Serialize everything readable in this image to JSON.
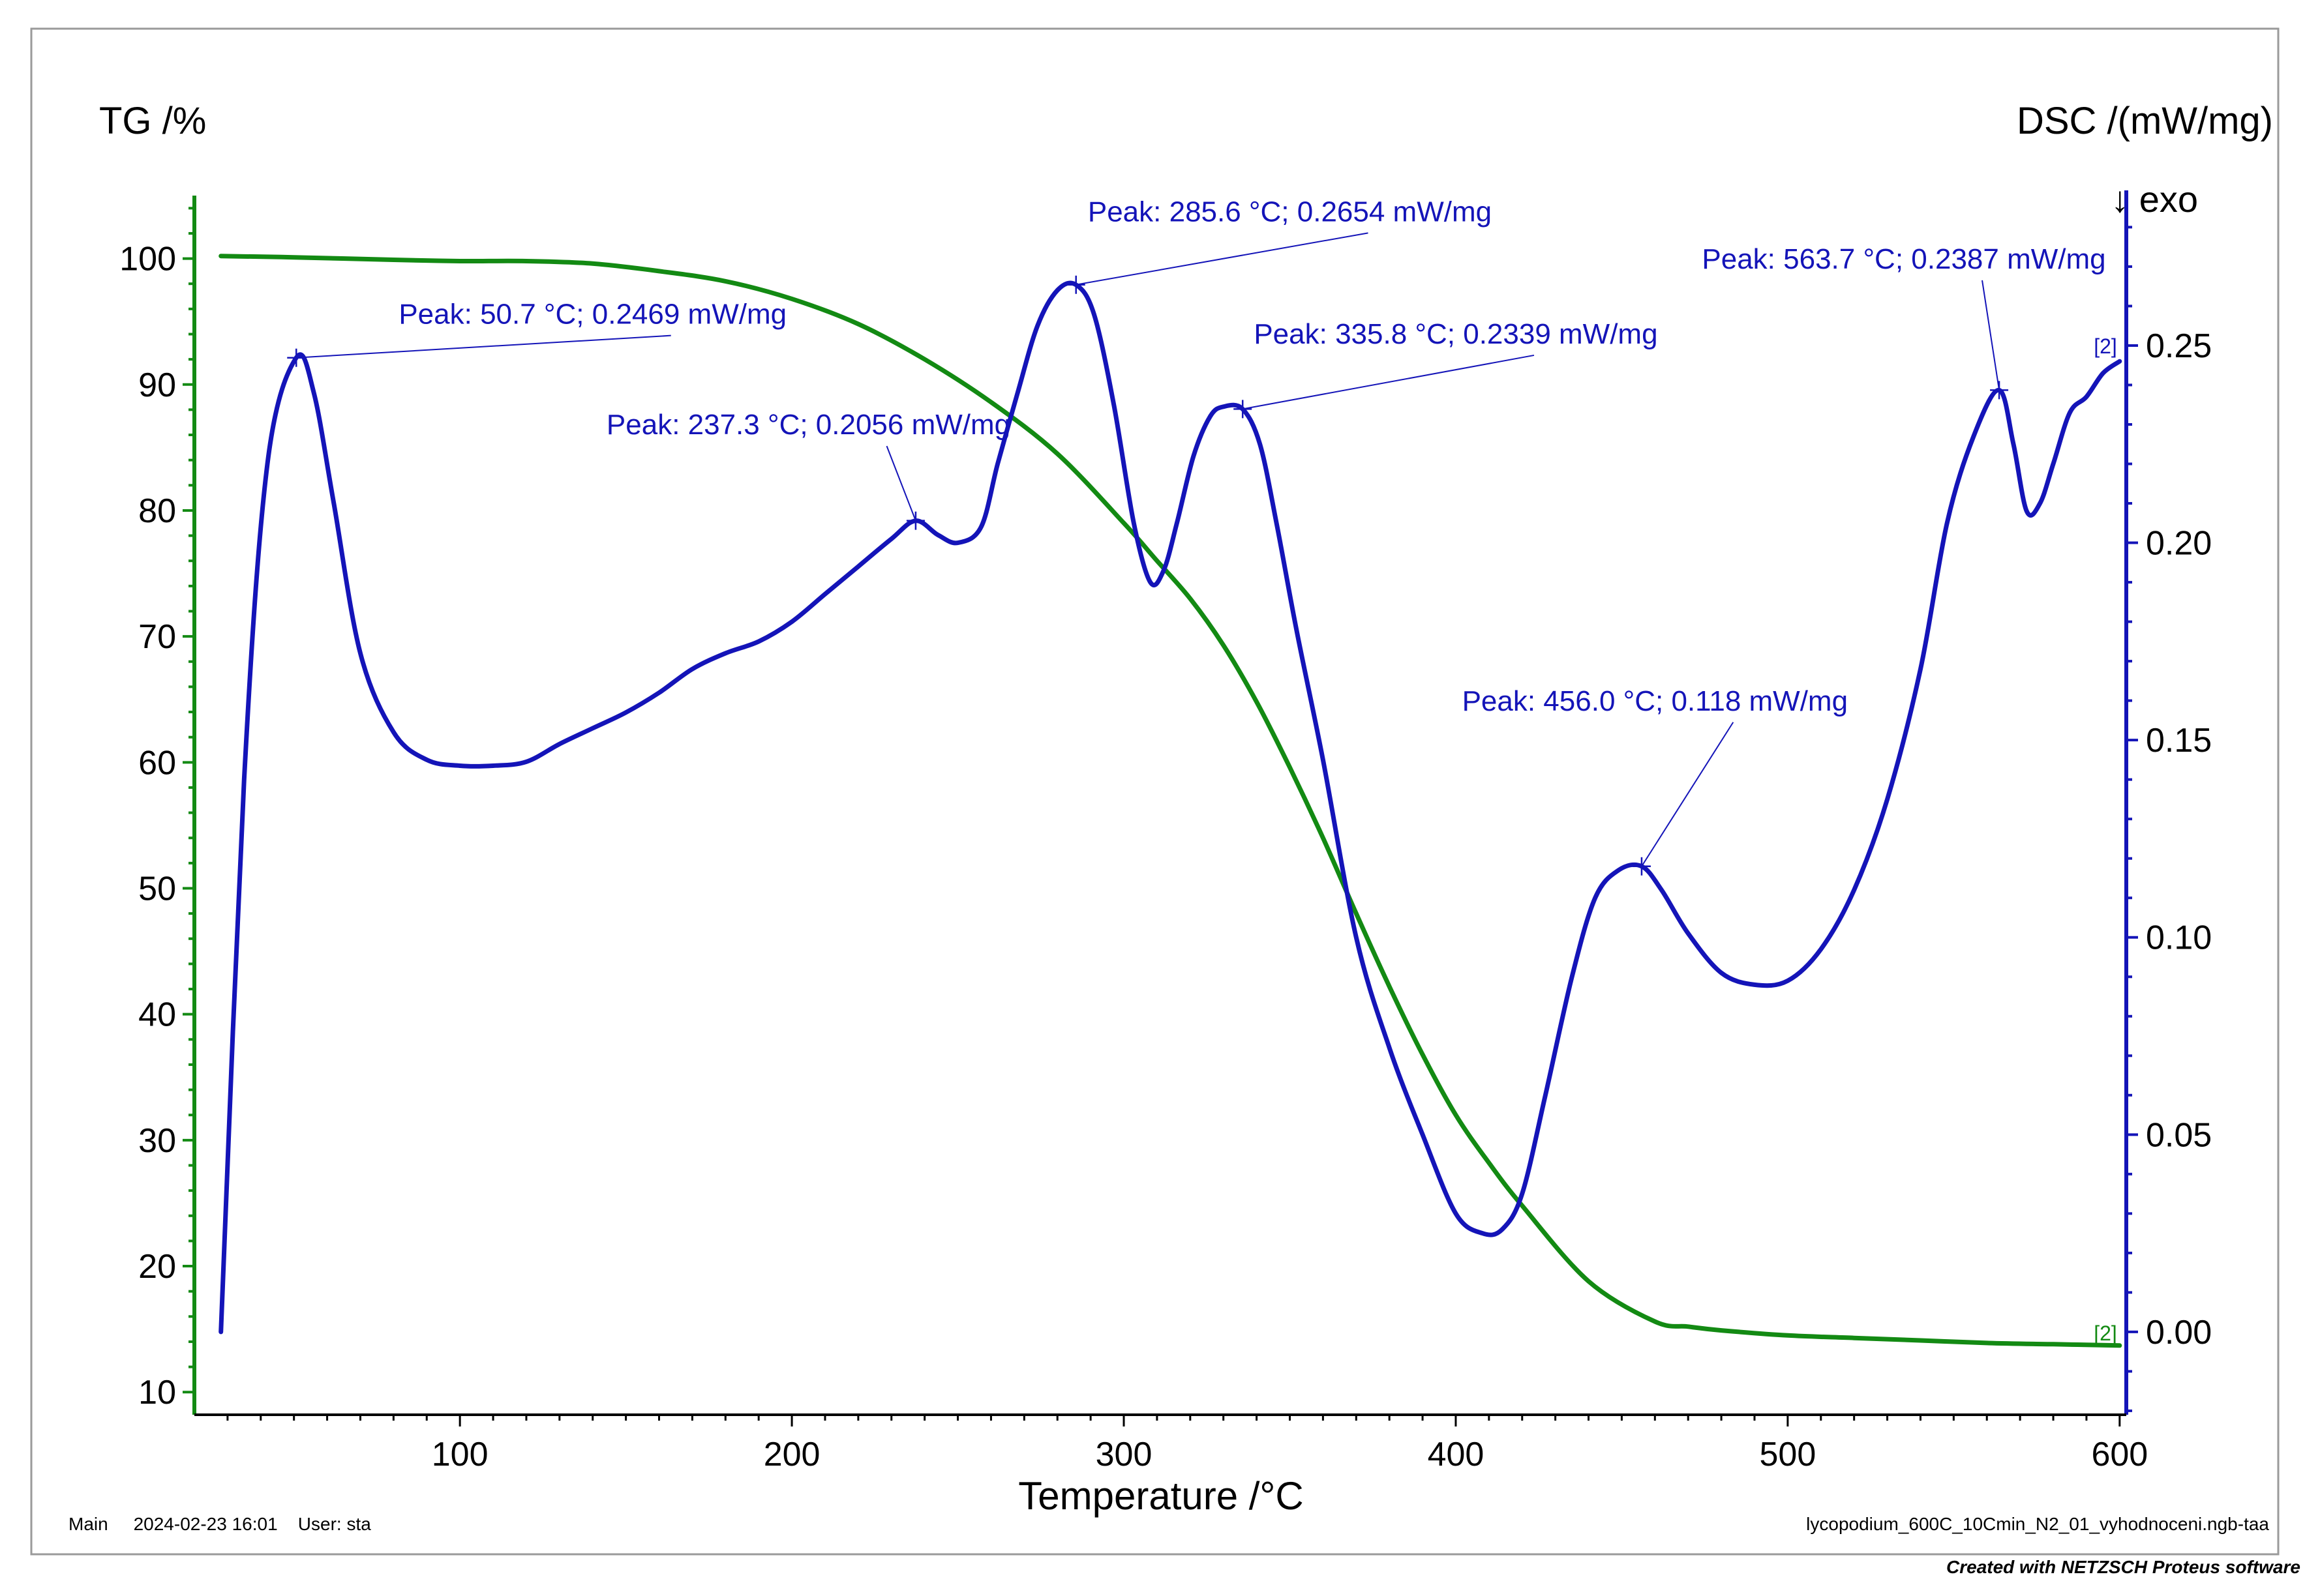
{
  "chart_data": {
    "type": "line",
    "title": "",
    "xlabel": "Temperature /°C",
    "ylabel_left": "TG /%",
    "ylabel_right": "DSC /(mW/mg)",
    "exo_label": "↓ exo",
    "xlim": [
      20,
      602
    ],
    "xticks": [
      100,
      200,
      300,
      400,
      500,
      600
    ],
    "y_left_lim": [
      8.2,
      105
    ],
    "y_left_ticks": [
      10,
      20,
      30,
      40,
      50,
      60,
      70,
      80,
      90,
      100
    ],
    "y_right_lim": [
      -0.021,
      0.288
    ],
    "y_right_ticks": [
      0.0,
      0.05,
      0.1,
      0.15,
      0.2,
      0.25
    ],
    "y_right_tick_labels": [
      "0.00",
      "0.05",
      "0.10",
      "0.15",
      "0.20",
      "0.25"
    ],
    "series": [
      {
        "name": "TG",
        "axis": "left",
        "color": "#138a13",
        "end_label": "[2]",
        "x": [
          28,
          50,
          80,
          100,
          120,
          140,
          160,
          180,
          200,
          220,
          240,
          260,
          280,
          300,
          310,
          320,
          330,
          340,
          350,
          360,
          370,
          380,
          390,
          400,
          410,
          420,
          440,
          460,
          470,
          480,
          500,
          520,
          540,
          560,
          580,
          600
        ],
        "values": [
          100.2,
          100.1,
          99.9,
          99.8,
          99.8,
          99.6,
          99.0,
          98.2,
          96.8,
          94.8,
          92.0,
          88.6,
          84.5,
          79.0,
          76.0,
          73.0,
          69.3,
          64.8,
          59.6,
          54.0,
          48.0,
          42.2,
          36.8,
          32.0,
          28.2,
          24.8,
          18.8,
          15.6,
          15.2,
          14.9,
          14.5,
          14.3,
          14.1,
          13.9,
          13.8,
          13.7
        ]
      },
      {
        "name": "DSC",
        "axis": "right",
        "color": "#1414b8",
        "end_label": "[2]",
        "x": [
          28,
          35,
          42,
          50.7,
          56,
          62,
          70,
          80,
          90,
          100,
          110,
          120,
          130,
          140,
          150,
          160,
          170,
          180,
          190,
          200,
          210,
          220,
          230,
          237.3,
          244,
          250,
          257,
          262,
          268,
          274,
          280,
          285.6,
          291,
          297,
          303,
          308,
          312,
          316,
          321,
          326,
          330,
          335.8,
          341,
          346,
          352,
          360,
          370,
          380,
          390,
          400,
          408,
          414,
          420,
          427,
          435,
          442,
          449,
          456,
          462,
          470,
          480,
          490,
          500,
          510,
          520,
          530,
          540,
          548,
          556,
          563.7,
          568,
          572,
          576,
          580,
          585,
          590,
          595,
          600
        ],
        "values": [
          0.0,
          0.14,
          0.22,
          0.2469,
          0.238,
          0.21,
          0.172,
          0.152,
          0.145,
          0.1435,
          0.1435,
          0.1445,
          0.149,
          0.153,
          0.157,
          0.162,
          0.168,
          0.172,
          0.175,
          0.18,
          0.187,
          0.194,
          0.201,
          0.2056,
          0.202,
          0.2,
          0.204,
          0.22,
          0.238,
          0.255,
          0.264,
          0.2654,
          0.258,
          0.235,
          0.205,
          0.19,
          0.193,
          0.205,
          0.222,
          0.232,
          0.2345,
          0.2339,
          0.225,
          0.205,
          0.178,
          0.145,
          0.1,
          0.072,
          0.05,
          0.03,
          0.025,
          0.026,
          0.035,
          0.06,
          0.09,
          0.11,
          0.117,
          0.118,
          0.112,
          0.101,
          0.091,
          0.088,
          0.089,
          0.097,
          0.112,
          0.135,
          0.168,
          0.205,
          0.227,
          0.2387,
          0.225,
          0.208,
          0.21,
          0.22,
          0.233,
          0.237,
          0.243,
          0.246
        ]
      }
    ],
    "annotations": [
      {
        "text": "Peak: 50.7 °C; 0.2469 mW/mg",
        "x": 50.7,
        "y": 0.2469,
        "text_x": 140,
        "text_y": 0.2555,
        "anchor": "middle"
      },
      {
        "text": "Peak: 237.3 °C; 0.2056 mW/mg",
        "x": 237.3,
        "y": 0.2056,
        "text_x": 205,
        "text_y": 0.2275,
        "anchor": "middle"
      },
      {
        "text": "Peak: 285.6 °C; 0.2654 mW/mg",
        "x": 285.6,
        "y": 0.2654,
        "text_x": 350,
        "text_y": 0.2815,
        "anchor": "middle"
      },
      {
        "text": "Peak: 335.8 °C; 0.2339 mW/mg",
        "x": 335.8,
        "y": 0.2339,
        "text_x": 400,
        "text_y": 0.2505,
        "anchor": "middle"
      },
      {
        "text": "Peak: 456.0 °C; 0.118 mW/mg",
        "x": 456.0,
        "y": 0.118,
        "text_x": 460,
        "text_y": 0.1575,
        "anchor": "middle"
      },
      {
        "text": "Peak: 563.7 °C; 0.2387 mW/mg",
        "x": 563.7,
        "y": 0.2387,
        "text_x": 535,
        "text_y": 0.2695,
        "anchor": "middle"
      }
    ]
  },
  "footer": {
    "left": "Main     2024-02-23 16:01    User: sta",
    "right": "lycopodium_600C_10Cmin_N2_01_vyhodnoceni.ngb-taa",
    "credit": "Created with NETZSCH Proteus software"
  }
}
